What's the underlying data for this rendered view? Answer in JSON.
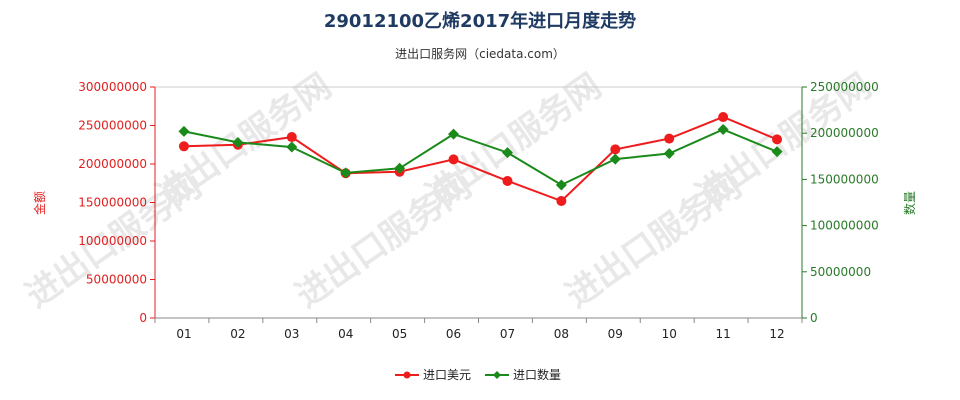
{
  "header": {
    "title": "29012100乙烯2017年进口月度走势",
    "subtitle": "进出口服务网（ciedata.com）"
  },
  "colors": {
    "series_amount": "#ee1c1c",
    "series_quantity": "#1a8a1a",
    "left_axis": "#e02020",
    "right_axis": "#2a7a2a"
  },
  "chart_data": {
    "type": "line",
    "categories": [
      "01",
      "02",
      "03",
      "04",
      "05",
      "06",
      "07",
      "08",
      "09",
      "10",
      "11",
      "12"
    ],
    "series": [
      {
        "name": "进口美元",
        "axis": "left",
        "marker": "circle",
        "values": [
          223000000,
          225000000,
          235000000,
          188000000,
          190000000,
          206000000,
          178000000,
          152000000,
          219000000,
          233000000,
          261000000,
          232000000
        ]
      },
      {
        "name": "进口数量",
        "axis": "right",
        "marker": "diamond",
        "values": [
          202000000,
          190000000,
          185000000,
          157000000,
          162000000,
          199000000,
          179000000,
          144000000,
          172000000,
          178000000,
          204000000,
          180000000
        ]
      }
    ],
    "y_left": {
      "label": "金额",
      "ylim": [
        0,
        300000000
      ],
      "ticks": [
        "0",
        "50000000",
        "100000000",
        "150000000",
        "200000000",
        "250000000",
        "300000000"
      ]
    },
    "y_right": {
      "label": "数量",
      "ylim": [
        0,
        250000000
      ],
      "ticks": [
        "0",
        "50000000",
        "100000000",
        "150000000",
        "200000000",
        "250000000"
      ]
    },
    "grid": false,
    "legend_position": "bottom"
  },
  "watermark": "进出口服务网"
}
